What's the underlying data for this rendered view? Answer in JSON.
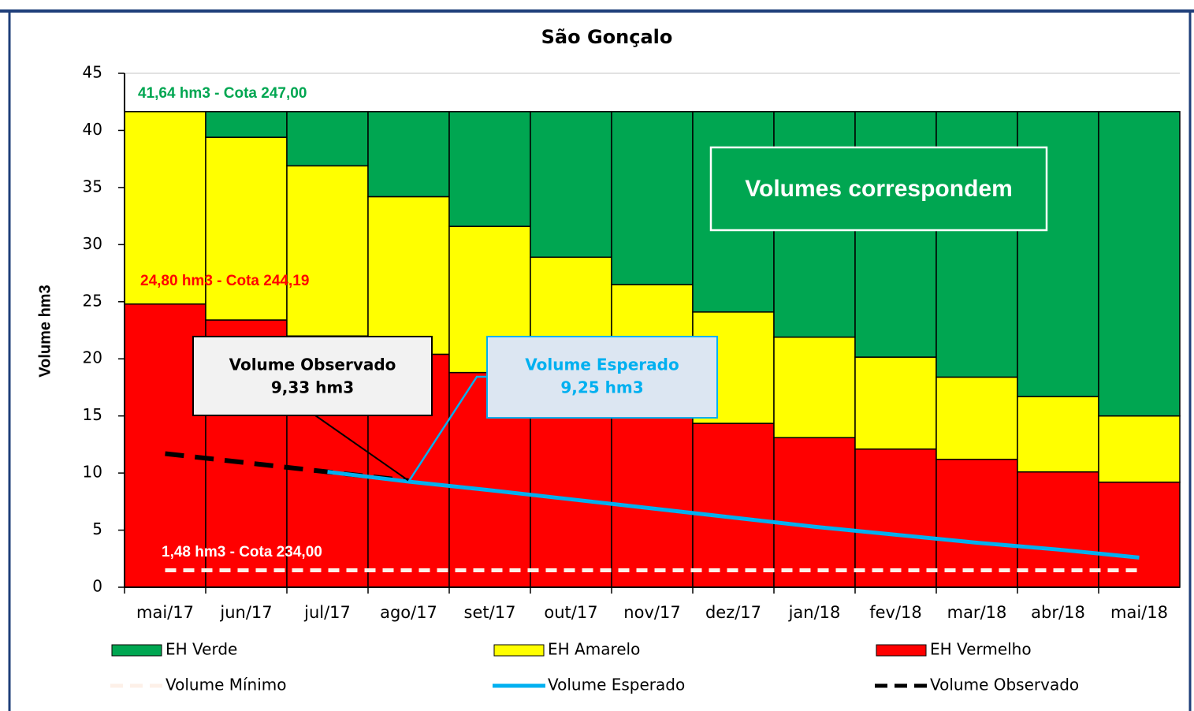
{
  "chart_data": {
    "type": "bar",
    "stacked": true,
    "title": "São Gonçalo",
    "y_label": "Volume hm3",
    "categories": [
      "mai/17",
      "jun/17",
      "jul/17",
      "ago/17",
      "set/17",
      "out/17",
      "nov/17",
      "dez/17",
      "jan/18",
      "fev/18",
      "mar/18",
      "abr/18",
      "mai/18"
    ],
    "series": [
      {
        "name": "EH Verde",
        "type": "bar",
        "color": "#00a651",
        "values": [
          0,
          2.24,
          4.74,
          7.44,
          10.04,
          12.74,
          15.14,
          17.54,
          19.74,
          21.49,
          23.24,
          24.94,
          26.64
        ]
      },
      {
        "name": "EH Amarelo",
        "type": "bar",
        "color": "#ffff00",
        "values": [
          16.84,
          16.0,
          14.9,
          13.8,
          12.8,
          11.6,
          10.7,
          9.75,
          8.8,
          8.05,
          7.2,
          6.6,
          5.8
        ]
      },
      {
        "name": "EH Vermelho",
        "type": "bar",
        "color": "#ff0000",
        "values": [
          24.8,
          23.4,
          22.0,
          20.4,
          18.8,
          17.3,
          15.8,
          14.35,
          13.1,
          12.1,
          11.2,
          10.1,
          9.2
        ]
      },
      {
        "name": "Volume Mínimo",
        "type": "line",
        "dashed": true,
        "color": "#fdf0e8",
        "values": [
          1.48,
          1.48,
          1.48,
          1.48,
          1.48,
          1.48,
          1.48,
          1.48,
          1.48,
          1.48,
          1.48,
          1.48,
          1.48
        ]
      },
      {
        "name": "Volume Esperado",
        "type": "line",
        "dashed": false,
        "color": "#00b0f0",
        "values": [
          null,
          null,
          10.1,
          9.25,
          8.5,
          7.7,
          6.9,
          6.1,
          5.3,
          4.6,
          3.9,
          3.3,
          2.6
        ]
      },
      {
        "name": "Volume Observado",
        "type": "line",
        "dashed": true,
        "color": "#000000",
        "values": [
          11.7,
          10.9,
          10.1,
          9.33,
          null,
          null,
          null,
          null,
          null,
          null,
          null,
          null,
          null
        ]
      }
    ],
    "ylim": [
      0,
      45
    ],
    "yticks": [
      0,
      5,
      10,
      15,
      20,
      25,
      30,
      35,
      40,
      45
    ],
    "grid": true,
    "annotations": [
      "41,64 hm3 - Cota 247,00",
      "24,80 hm3 - Cota 244,19",
      "1,48 hm3 - Cota 234,00"
    ],
    "callouts": [
      {
        "lines": [
          "Volume Observado",
          "9,33 hm3"
        ]
      },
      {
        "lines": [
          "Volume Esperado",
          "9,25 hm3"
        ]
      }
    ],
    "note": "Volumes correspondem"
  }
}
